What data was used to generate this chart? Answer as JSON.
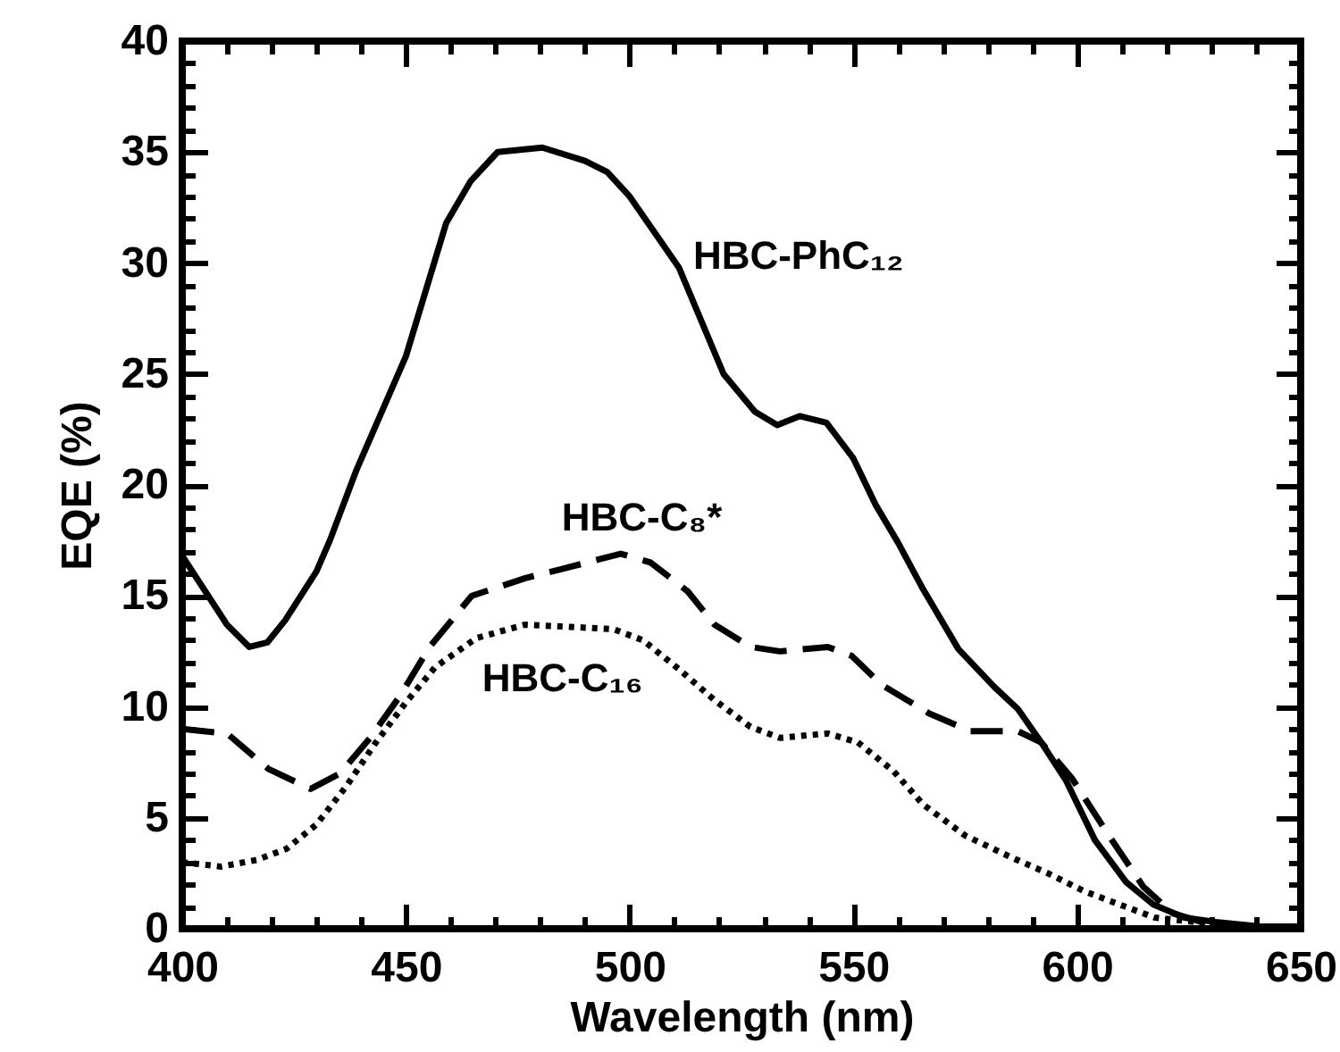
{
  "chart_data": {
    "type": "line",
    "xlabel": "Wavelength (nm)",
    "ylabel": "EQE (%)",
    "xlim": [
      400,
      650
    ],
    "xticks": [
      400,
      450,
      500,
      550,
      600,
      650
    ],
    "ylim": [
      0,
      40
    ],
    "yticks": [
      0,
      5,
      10,
      15,
      20,
      25,
      30,
      35,
      40
    ],
    "grid": false,
    "series": [
      {
        "name": "HBC-PhC₁₂",
        "color": "#000000",
        "line_style": "solid",
        "x": [
          400,
          410,
          415,
          419,
          423,
          430,
          433,
          439,
          450,
          459,
          464.5,
          470.5,
          480.5,
          490,
          495,
          500,
          511,
          521,
          528,
          533,
          538,
          544,
          550,
          555,
          560,
          565.6,
          573.5,
          581.5,
          586.8,
          592,
          597.5,
          604,
          611,
          617,
          624,
          631,
          641,
          650
        ],
        "values": [
          16.8,
          13.7,
          12.7,
          12.9,
          13.9,
          16.1,
          17.5,
          20.7,
          25.8,
          31.8,
          33.7,
          35.0,
          35.2,
          34.6,
          34.1,
          33.0,
          29.8,
          25.0,
          23.3,
          22.7,
          23.1,
          22.8,
          21.2,
          19.1,
          17.4,
          15.3,
          12.6,
          10.9,
          9.9,
          8.4,
          6.7,
          4.0,
          2.1,
          1.1,
          0.5,
          0.3,
          0.1,
          0.1
        ]
      },
      {
        "name": "HBC-C₈*",
        "color": "#000000",
        "line_style": "dashed",
        "x": [
          400,
          410,
          419.3,
          428.7,
          435.3,
          442,
          448.7,
          455.3,
          464.7,
          476.7,
          484.7,
          498,
          504.7,
          513,
          519,
          527,
          533.6,
          544.3,
          549.6,
          556.3,
          567,
          576.2,
          586.8,
          592,
          598.8,
          606.8,
          614.8,
          621.4,
          628,
          640,
          650
        ],
        "values": [
          9.0,
          8.8,
          7.2,
          6.3,
          7.0,
          8.6,
          10.5,
          12.7,
          15.0,
          15.8,
          16.2,
          16.9,
          16.5,
          15.2,
          13.7,
          12.7,
          12.5,
          12.7,
          12.3,
          11.0,
          9.7,
          8.9,
          8.9,
          8.4,
          6.8,
          4.3,
          1.9,
          0.7,
          0.3,
          0.1,
          0.1
        ]
      },
      {
        "name": "HBC-C₁₆",
        "color": "#000000",
        "line_style": "dotted",
        "x": [
          400,
          408.7,
          416.6,
          423.3,
          430,
          436.6,
          443.3,
          450,
          456.6,
          465.8,
          476.5,
          487,
          496.4,
          503,
          511,
          519,
          527,
          533.6,
          544.3,
          551,
          559,
          565.6,
          575,
          585.5,
          593.5,
          601.5,
          609.4,
          617.4,
          626.7,
          637,
          650
        ],
        "values": [
          3.0,
          2.8,
          3.1,
          3.6,
          4.7,
          6.4,
          8.4,
          10.2,
          11.8,
          13.1,
          13.7,
          13.6,
          13.5,
          13.0,
          11.7,
          10.3,
          9.1,
          8.6,
          8.8,
          8.4,
          7.1,
          5.6,
          4.2,
          3.2,
          2.5,
          1.7,
          1.1,
          0.5,
          0.3,
          0.1,
          0.1
        ]
      }
    ]
  }
}
